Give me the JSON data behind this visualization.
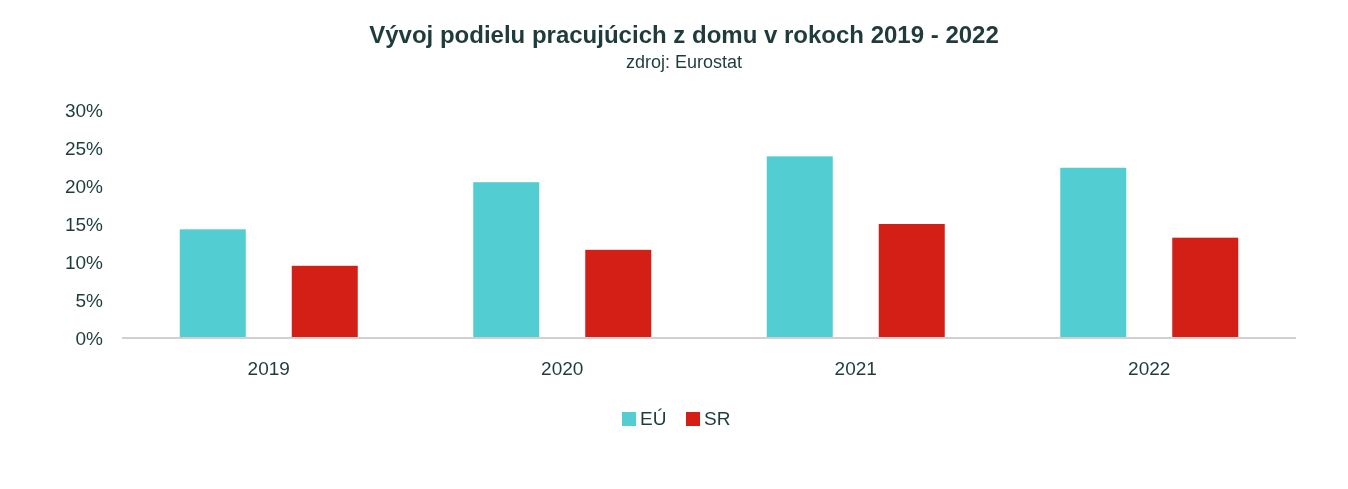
{
  "chart_data": {
    "type": "bar",
    "title": "Vývoj podielu pracujúcich z domu v rokoch 2019 - 2022",
    "subtitle": "zdroj: Eurostat",
    "categories": [
      "2019",
      "2020",
      "2021",
      "2022"
    ],
    "series": [
      {
        "name": "EÚ",
        "color": "#52ced3",
        "values": [
          14.3,
          20.5,
          23.9,
          22.4
        ]
      },
      {
        "name": "SR",
        "color": "#d41f16",
        "values": [
          9.5,
          11.6,
          15.0,
          13.2
        ]
      }
    ],
    "ylim": [
      0,
      30
    ],
    "yticks": [
      {
        "value": 0,
        "label": "0%"
      },
      {
        "value": 5,
        "label": "5%"
      },
      {
        "value": 10,
        "label": "10%"
      },
      {
        "value": 15,
        "label": "15%"
      },
      {
        "value": 20,
        "label": "20%"
      },
      {
        "value": 25,
        "label": "25%"
      },
      {
        "value": 30,
        "label": "30%"
      }
    ],
    "grid": false,
    "legend": "bottom"
  }
}
